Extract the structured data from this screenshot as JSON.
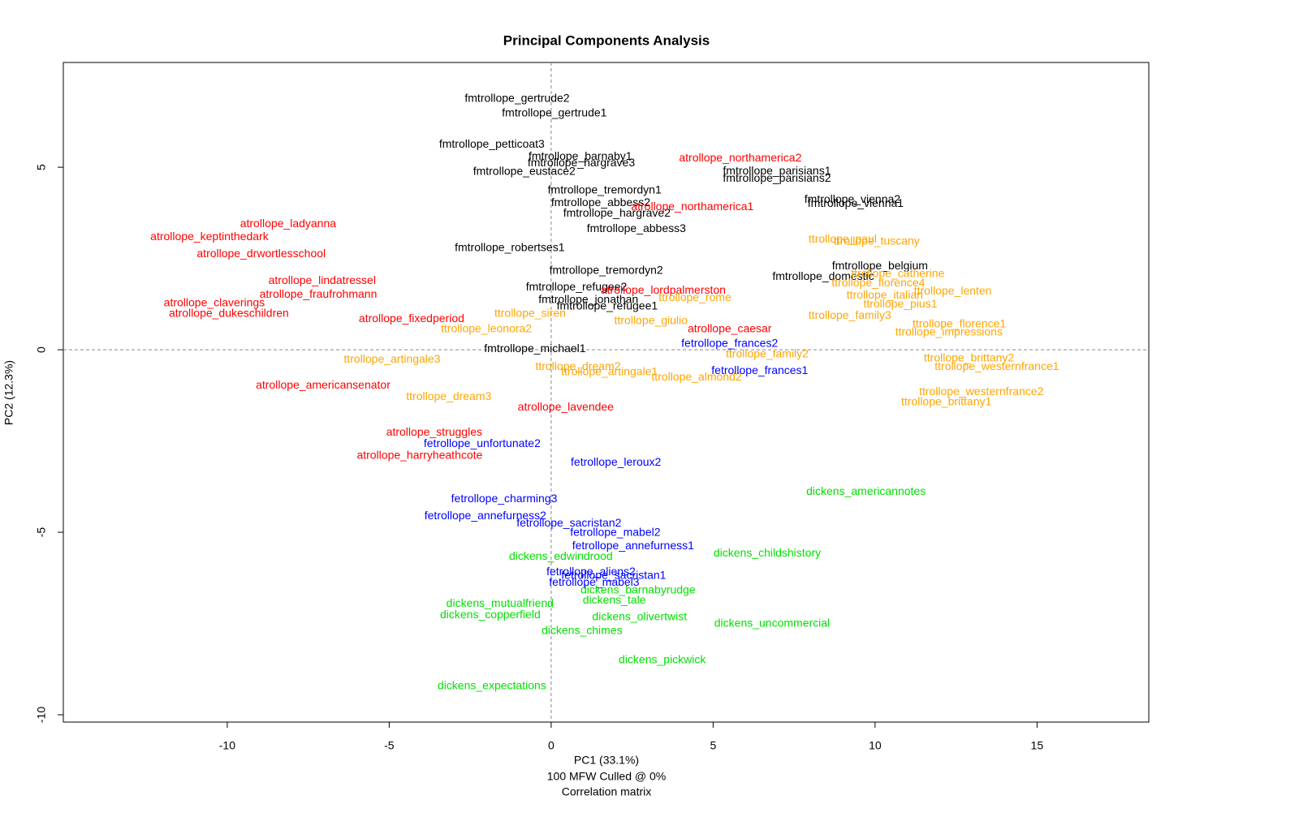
{
  "chart_data": {
    "type": "scatter",
    "title": "Principal Components Analysis",
    "xlabel": "PC1 (33.1%)",
    "ylabel": "PC2 (12.3%)",
    "subtitle": [
      "100 MFW  Culled @ 0%",
      "Correlation matrix"
    ],
    "xlim": [
      -15.06,
      18.45
    ],
    "ylim": [
      -10.2,
      7.87
    ],
    "xticks": [
      -10,
      -5,
      0,
      5,
      10,
      15
    ],
    "yticks": [
      -10,
      -5,
      0,
      5
    ],
    "zero_lines": true,
    "series": [
      {
        "color": "#000000",
        "labels": [
          "fmtrollope_gertrude2",
          "fmtrollope_gertrude1",
          "fmtrollope_petticoat3",
          "fmtrollope_barnaby1",
          "fmtrollope_hargrave3",
          "fmtrollope_eustace2",
          "fmtrollope_parisians1",
          "fmtrollope_parisians2",
          "fmtrollope_tremordyn1",
          "fmtrollope_abbess2",
          "fmtrollope_vienna2",
          "fmtrollope_vienna1",
          "fmtrollope_hargrave2",
          "fmtrollope_abbess3",
          "fmtrollope_robertses1",
          "fmtrollope_belgium",
          "fmtrollope_domestic",
          "fmtrollope_tremordyn2",
          "fmtrollope_refugee2",
          "fmtrollope_jonathan",
          "fmtrollope_refugee1",
          "fmtrollope_michael1"
        ],
        "x": [
          -1.05,
          0.1,
          -1.83,
          0.9,
          0.93,
          -0.83,
          6.97,
          6.97,
          1.65,
          1.53,
          9.3,
          9.4,
          2.03,
          2.63,
          -1.28,
          10.15,
          8.4,
          1.7,
          0.78,
          1.15,
          1.73,
          -0.5
        ],
        "y": [
          6.87,
          6.47,
          5.62,
          5.29,
          5.11,
          4.87,
          4.89,
          4.69,
          4.36,
          4.02,
          4.11,
          4.0,
          3.73,
          3.31,
          2.78,
          2.29,
          2.0,
          2.16,
          1.71,
          1.36,
          1.18,
          0.02
        ]
      },
      {
        "color": "#ff0000",
        "labels": [
          "atrollope_northamerica2",
          "atrollope_northamerica1",
          "atrollope_ladyanna",
          "atrollope_keptinthedark",
          "atrollope_drwortlesschool",
          "atrollope_lindatressel",
          "atrollope_fraufrohmann",
          "atrollope_lordpalmerston",
          "atrollope_claverings",
          "atrollope_dukeschildren",
          "atrollope_fixedperiod",
          "atrollope_caesar",
          "atrollope_americansenator",
          "atrollope_lavendee",
          "atrollope_struggles",
          "atrollope_harryheathcote"
        ],
        "x": [
          5.84,
          4.36,
          -8.12,
          -10.55,
          -8.95,
          -7.07,
          -7.19,
          3.46,
          -10.4,
          -9.95,
          -4.31,
          5.51,
          -7.04,
          0.45,
          -3.61,
          -4.06
        ],
        "y": [
          5.24,
          3.91,
          3.44,
          3.09,
          2.62,
          1.89,
          1.51,
          1.62,
          1.27,
          0.98,
          0.84,
          0.56,
          -0.98,
          -1.58,
          -2.27,
          -2.91
        ]
      },
      {
        "color": "#ffa500",
        "labels": [
          "ttrollope_paul",
          "ttrollope_tuscany",
          "ttrollope_catherine",
          "ttrollope_lenten",
          "ttrollope_florence4",
          "ttrollope_italian",
          "ttrollope_pius1",
          "ttrollope_family3",
          "ttrollope_florence1",
          "ttrollope_impressions",
          "ttrollope_brittany2",
          "ttrollope_westernfrance1",
          "ttrollope_westernfrance2",
          "ttrollope_brittany1",
          "ttrollope_rome",
          "ttrollope_giulio",
          "ttrollope_siren",
          "ttrollope_leonora2",
          "ttrollope_family2",
          "ttrollope_artingale3",
          "ttrollope_artingale1",
          "ttrollope_dream2",
          "ttrollope_dream3",
          "ttrollope_almond2"
        ],
        "x": [
          9.0,
          10.05,
          10.7,
          12.4,
          10.1,
          10.3,
          10.78,
          9.22,
          12.6,
          12.28,
          12.9,
          13.76,
          13.28,
          12.2,
          4.44,
          3.08,
          -0.65,
          -2.0,
          6.67,
          -4.91,
          1.8,
          0.83,
          -3.16,
          4.49
        ],
        "y": [
          3.02,
          2.96,
          2.07,
          1.6,
          1.82,
          1.49,
          1.24,
          0.93,
          0.69,
          0.47,
          -0.24,
          -0.47,
          -1.16,
          -1.44,
          1.42,
          0.78,
          0.98,
          0.56,
          -0.13,
          -0.27,
          -0.62,
          -0.47,
          -1.29,
          -0.76
        ]
      },
      {
        "color": "#0000ff",
        "labels": [
          "fetrollope_frances2",
          "fetrollope_frances1",
          "fetrollope_unfortunate2",
          "fetrollope_leroux2",
          "fetrollope_charming3",
          "fetrollope_annefurness2",
          "fetrollope_sacristan2",
          "fetrollope_mabel2",
          "fetrollope_annefurness1",
          "fetrollope_aliens2",
          "fetrollope_sacristan1",
          "fetrollope_mabel3"
        ],
        "x": [
          5.51,
          6.44,
          -2.13,
          2.0,
          -1.45,
          -2.03,
          0.55,
          1.98,
          2.53,
          1.23,
          1.93,
          1.33
        ],
        "y": [
          0.16,
          -0.58,
          -2.58,
          -3.09,
          -4.09,
          -4.56,
          -4.76,
          -5.02,
          -5.38,
          -6.09,
          -6.2,
          -6.38
        ]
      },
      {
        "color": "#00e000",
        "labels": [
          "dickens_americannotes",
          "dickens_childshistory",
          "dickens_edwindrood",
          "dickens_barnabyrudge",
          "dickens_tale",
          "dickens_mutualfriend",
          "dickens_copperfield",
          "dickens_olivertwist",
          "dickens_uncommercial",
          "dickens_chimes",
          "dickens_pickwick",
          "dickens_expectations"
        ],
        "x": [
          9.72,
          6.67,
          0.3,
          2.68,
          1.95,
          -1.58,
          -1.88,
          2.73,
          6.82,
          0.95,
          3.43,
          -1.83
        ],
        "y": [
          -3.89,
          -5.58,
          -5.67,
          -6.6,
          -6.87,
          -6.96,
          -7.27,
          -7.33,
          -7.51,
          -7.71,
          -8.51,
          -9.22
        ]
      }
    ]
  }
}
